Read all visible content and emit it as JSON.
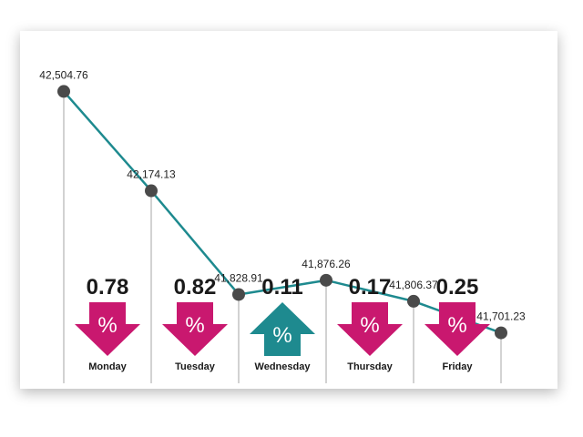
{
  "chart_data": {
    "type": "line",
    "title": "",
    "xlabel": "",
    "ylabel": "",
    "categories": [
      "Monday",
      "Tuesday",
      "Wednesday",
      "Thursday",
      "Friday"
    ],
    "x": [
      0,
      1,
      2,
      3,
      4,
      5
    ],
    "values": [
      42504.76,
      42174.13,
      41828.91,
      41876.26,
      41806.37,
      41701.23
    ],
    "value_labels": [
      "42,504.76",
      "42,174.13",
      "41,828.91",
      "41,876.26",
      "41,806.37",
      "41,701.23"
    ],
    "ylim": [
      41600,
      42600
    ],
    "grid": false,
    "daily_change": [
      {
        "day": "Monday",
        "percent": "0.78",
        "direction": "down"
      },
      {
        "day": "Tuesday",
        "percent": "0.82",
        "direction": "down"
      },
      {
        "day": "Wednesday",
        "percent": "0.11",
        "direction": "up"
      },
      {
        "day": "Thursday",
        "percent": "0.17",
        "direction": "down"
      },
      {
        "day": "Friday",
        "percent": "0.25",
        "direction": "down"
      }
    ],
    "percent_symbol": "%",
    "colors": {
      "line": "#1e8a8f",
      "marker": "#4a4a4a",
      "down": "#c9186f",
      "up": "#1e8a8f",
      "stem": "#b5b5b5"
    }
  }
}
